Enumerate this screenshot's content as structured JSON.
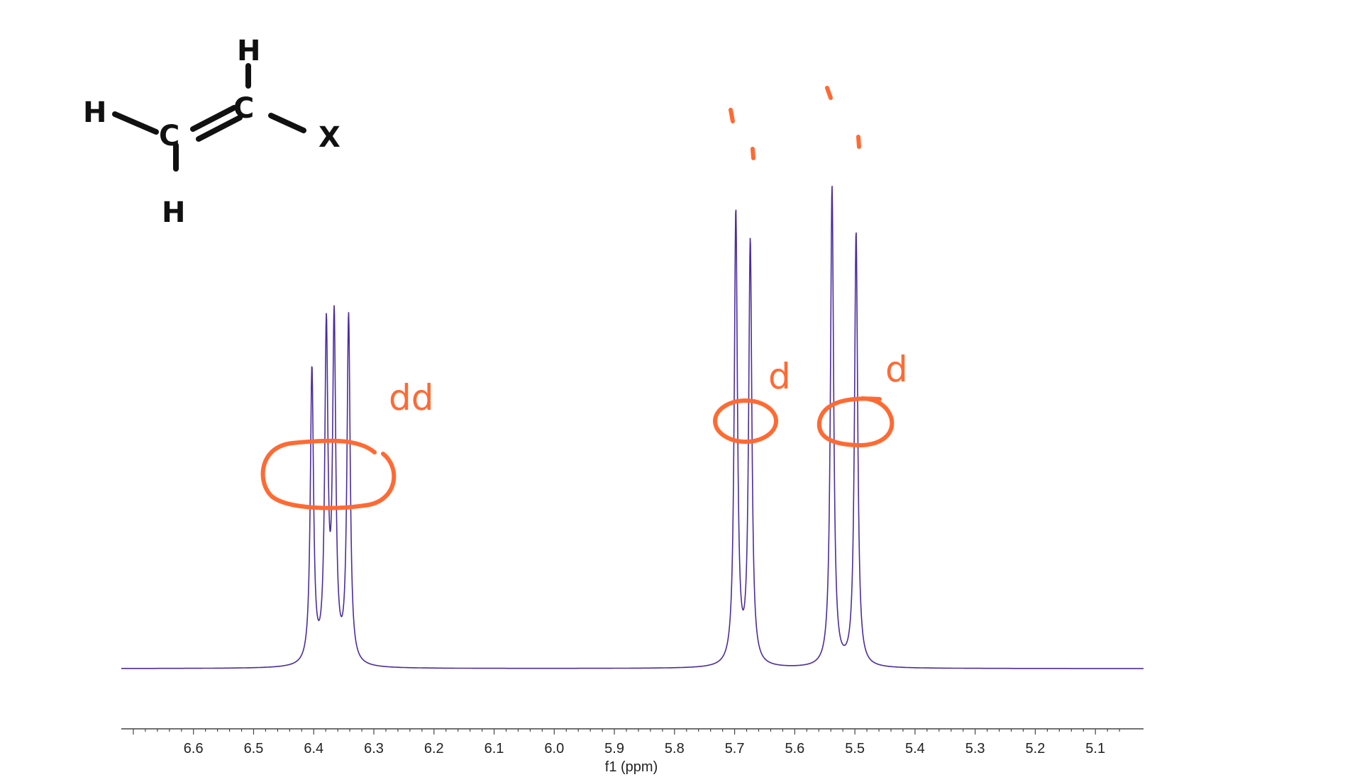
{
  "chart_data": {
    "type": "line",
    "title": "",
    "xlabel": "f1 (ppm)",
    "ylabel": "",
    "x_reversed": true,
    "xlim": [
      6.72,
      5.02
    ],
    "ylim": [
      0,
      1.0
    ],
    "xticks": [
      6.6,
      6.5,
      6.4,
      6.3,
      6.2,
      6.1,
      6.0,
      5.9,
      5.8,
      5.7,
      5.6,
      5.5,
      5.4,
      5.3,
      5.2,
      5.1
    ],
    "xtick_labels": [
      "6.6",
      "6.5",
      "6.4",
      "6.3",
      "6.2",
      "6.1",
      "6.0",
      "5.9",
      "5.8",
      "5.7",
      "5.6",
      "5.5",
      "5.4",
      "5.3",
      "5.2",
      "5.1"
    ],
    "grid": false,
    "series": [
      {
        "color": "#4b2c9e",
        "peaks": [
          {
            "ppm": 6.403,
            "height": 0.78
          },
          {
            "ppm": 6.379,
            "height": 0.87
          },
          {
            "ppm": 6.366,
            "height": 0.89
          },
          {
            "ppm": 6.342,
            "height": 0.92
          },
          {
            "ppm": 5.698,
            "height": 1.2
          },
          {
            "ppm": 5.674,
            "height": 1.12
          },
          {
            "ppm": 5.538,
            "height": 1.27
          },
          {
            "ppm": 5.498,
            "height": 1.15
          }
        ]
      }
    ],
    "annotations": [
      {
        "text": "dd"
      },
      {
        "text": "d"
      },
      {
        "text": "d"
      }
    ]
  },
  "structure": {
    "atoms": [
      "H",
      "C",
      "C",
      "H",
      "X",
      "H"
    ]
  },
  "colors": {
    "spectrum": "#4b2c9e",
    "annotation": "#ff6a33",
    "axis": "#444444",
    "structure": "#111111"
  }
}
